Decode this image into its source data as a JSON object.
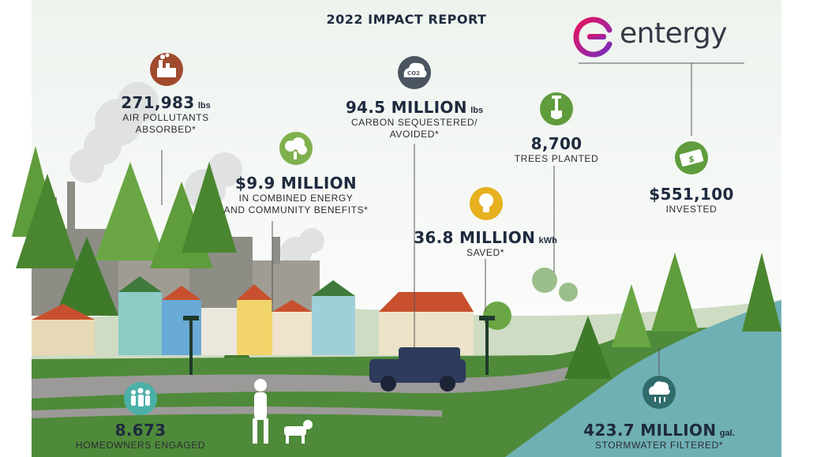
{
  "header": {
    "title": "2022 IMPACT REPORT",
    "logo_text": "entergy"
  },
  "stats": {
    "air": {
      "value": "271,983",
      "unit": "lbs",
      "line1": "AIR POLLUTANTS",
      "line2": "ABSORBED*"
    },
    "carbon": {
      "value": "94.5 MILLION",
      "unit": "lbs",
      "line1": "CARBON SEQUESTERED/",
      "line2": "AVOIDED*"
    },
    "trees": {
      "value": "8,700",
      "line1": "TREES PLANTED"
    },
    "benefits": {
      "value": "$9.9 MILLION",
      "line1": "IN COMBINED ENERGY",
      "line2": "AND COMMUNITY BENEFITS*"
    },
    "invested": {
      "value": "$551,100",
      "line1": "INVESTED"
    },
    "energy": {
      "value": "36.8 MILLION",
      "unit": "kWh",
      "line1": "SAVED*"
    },
    "homeowners": {
      "value": "8.673",
      "line1": "HOMEOWNERS ENGAGED"
    },
    "stormwater": {
      "value": "423.7 MILLION",
      "unit": "gal.",
      "line1": "STORMWATER FILTERED*"
    }
  },
  "icons": {
    "factory": "factory-icon",
    "co2": "co2-cloud-icon",
    "co2_label": "CO2",
    "shovel": "shovel-icon",
    "tree": "tree-icon",
    "money": "money-icon",
    "bulb": "lightbulb-icon",
    "people": "people-icon",
    "rain": "rain-cloud-icon"
  },
  "colors": {
    "brand_gradient_start": "#e8125c",
    "brand_gradient_end": "#7b2dbf",
    "factory_badge": "#a04a2e",
    "co2_badge": "#4a5560",
    "green_badge": "#5f9c3c",
    "bulb_badge": "#e6b01e",
    "people_badge": "#4bb0a8",
    "rain_badge": "#2f6b6a",
    "text_dark": "#1e2a3e",
    "water": "#6fb0b4",
    "grass": "#4f8a3a"
  }
}
